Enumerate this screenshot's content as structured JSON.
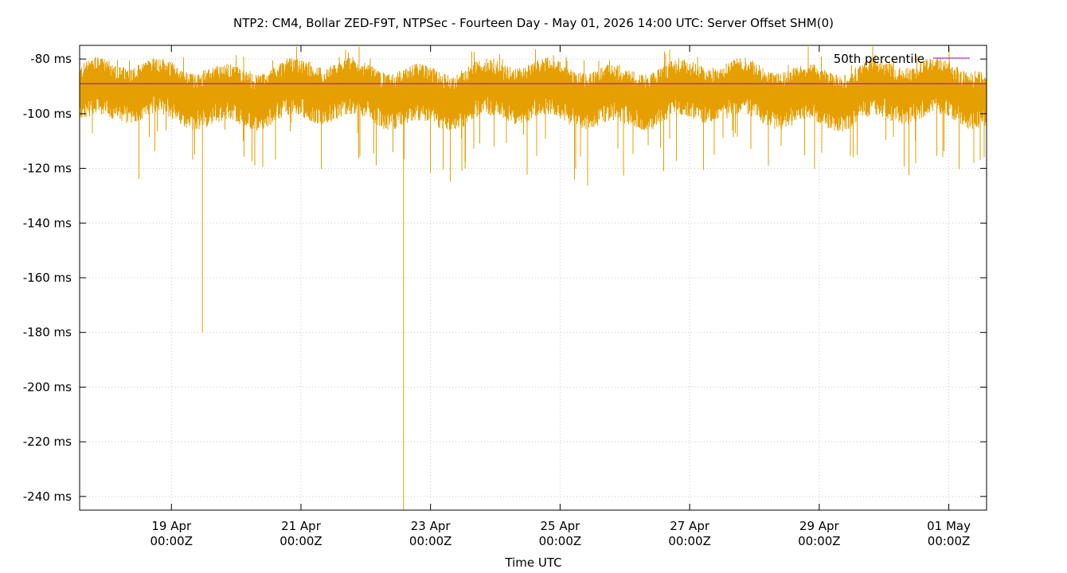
{
  "chart_data": {
    "type": "line",
    "title": "NTP2: CM4, Bollar ZED-F9T, NTPSec - Fourteen Day - May 01, 2026 14:00 UTC: Server Offset SHM(0)",
    "xlabel": "Time UTC",
    "ylabel": "",
    "x_range": [
      "2026-04-17T14:00Z",
      "2026-05-01T14:00Z"
    ],
    "ylim": [
      -245,
      -75
    ],
    "y_unit": "ms",
    "y_ticks": [
      -80,
      -100,
      -120,
      -140,
      -160,
      -180,
      -200,
      -220,
      -240
    ],
    "y_tick_labels": [
      "-80 ms",
      "-100 ms",
      "-120 ms",
      "-140 ms",
      "-160 ms",
      "-180 ms",
      "-200 ms",
      "-220 ms",
      "-240 ms"
    ],
    "x_ticks": [
      {
        "at": "2026-04-19T00:00Z",
        "line1": "19 Apr",
        "line2": "00:00Z"
      },
      {
        "at": "2026-04-21T00:00Z",
        "line1": "21 Apr",
        "line2": "00:00Z"
      },
      {
        "at": "2026-04-23T00:00Z",
        "line1": "23 Apr",
        "line2": "00:00Z"
      },
      {
        "at": "2026-04-25T00:00Z",
        "line1": "25 Apr",
        "line2": "00:00Z"
      },
      {
        "at": "2026-04-27T00:00Z",
        "line1": "27 Apr",
        "line2": "00:00Z"
      },
      {
        "at": "2026-04-29T00:00Z",
        "line1": "29 Apr",
        "line2": "00:00Z"
      },
      {
        "at": "2026-05-01T00:00Z",
        "line1": "01 May",
        "line2": "00:00Z"
      }
    ],
    "grid": true,
    "legend_position": "top-right",
    "legend_entries": [
      "50th percentile"
    ],
    "series": [
      {
        "color": "#e69f00",
        "summary": {
          "typical": -92,
          "band_low": -101,
          "band_high": -84,
          "min": -245,
          "max": -75
        },
        "spikes": [
          {
            "t": "2026-04-19T11:30Z",
            "value": -180
          },
          {
            "t": "2026-04-22T14:00Z",
            "value": -245
          }
        ]
      },
      {
        "name": "50th percentile",
        "color": "#9400d3",
        "values": [
          -89,
          -89
        ]
      }
    ]
  }
}
